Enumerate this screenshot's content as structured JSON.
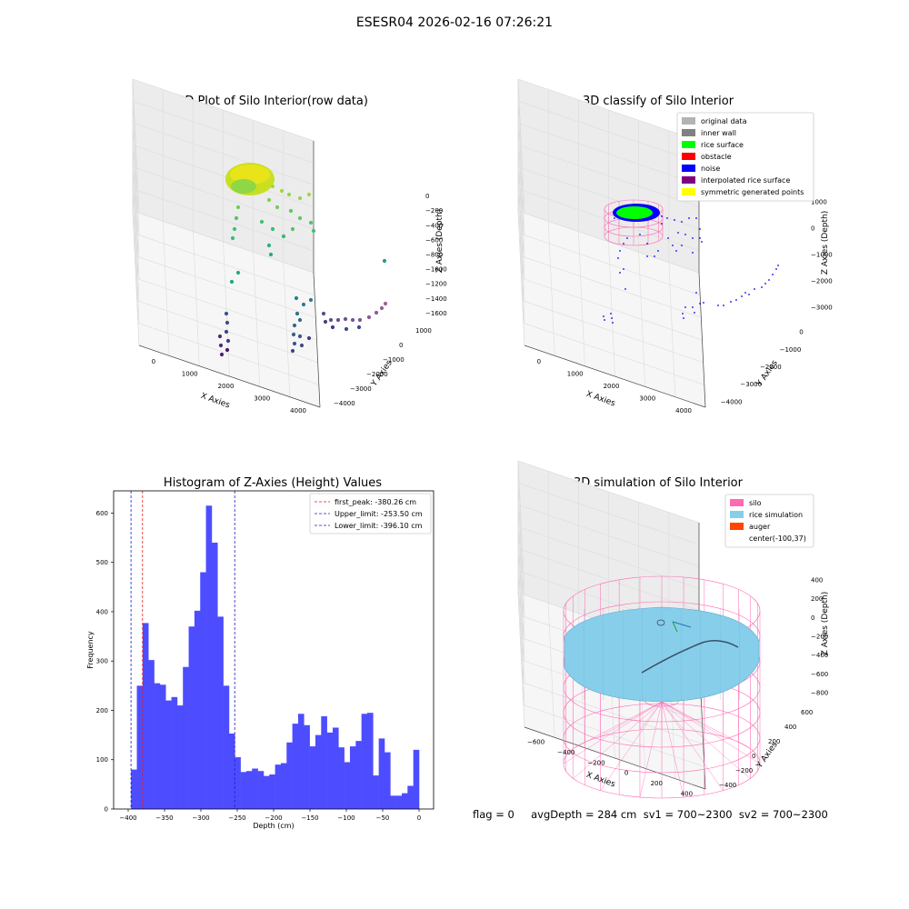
{
  "suptitle": "ESESR04 2026-02-16 07:26:21",
  "footer": "flag = 0     avgDepth = 284 cm  sv1 = 700~2300  sv2 = 700~2300",
  "colors": {
    "hist_bar": "#4d4dff",
    "peak_line": "#e41a1c",
    "limit_line": "#1f1fbf",
    "silo": "#ff69b4",
    "rice": "#87ceeb",
    "noise": "#0000ff",
    "rice_surface": "#00ff00"
  },
  "chart_data": [
    {
      "type": "scatter",
      "title": "3D Plot of Silo Interior(row data)",
      "xlabel": "X Axies",
      "ylabel": "Y Axies",
      "zlabel": "Z Axies (Depth)",
      "x_ticks": [
        "0",
        "1000",
        "2000",
        "3000",
        "4000"
      ],
      "y_ticks": [
        "1000",
        "0",
        "−1000",
        "−2000",
        "−3000",
        "−4000"
      ],
      "z_ticks": [
        "0",
        "−200",
        "−400",
        "−600",
        "−800",
        "−1000",
        "−1200",
        "−1400",
        "−1600"
      ],
      "colormap": "viridis"
    },
    {
      "type": "scatter",
      "title": "3D classify of Silo Interior",
      "xlabel": "X Axies",
      "ylabel": "Y Axies",
      "zlabel": "Z Axies (Depth)",
      "x_ticks": [
        "0",
        "1000",
        "2000",
        "3000",
        "4000"
      ],
      "y_ticks": [
        "0",
        "−1000",
        "−2000",
        "−3000",
        "−4000"
      ],
      "z_ticks": [
        "1000",
        "0",
        "−1000",
        "−2000",
        "−3000"
      ],
      "legend": [
        {
          "label": "original data",
          "color": "#b3b3b3"
        },
        {
          "label": "inner wall",
          "color": "#808080"
        },
        {
          "label": "rice surface",
          "color": "#00ff00"
        },
        {
          "label": "obstacle",
          "color": "#ff0000"
        },
        {
          "label": "noise",
          "color": "#0000ff"
        },
        {
          "label": "interpolated rice surface",
          "color": "#800080"
        },
        {
          "label": "symmetric generated points",
          "color": "#ffff00"
        }
      ],
      "legend_position": "top-right"
    },
    {
      "type": "bar",
      "title": "Histogram of Z-Axies (Height) Values",
      "xlabel": "Depth (cm)",
      "ylabel": "Frequency",
      "xlim": [
        -420,
        20
      ],
      "ylim": [
        0,
        645
      ],
      "x_ticks": [
        -400,
        -350,
        -300,
        -250,
        -200,
        -150,
        -100,
        -50,
        0
      ],
      "x_tick_labels": [
        "−400",
        "−350",
        "−300",
        "−250",
        "−200",
        "−150",
        "−100",
        "−50",
        "0"
      ],
      "y_ticks": [
        0,
        100,
        200,
        300,
        400,
        500,
        600
      ],
      "bin_start": -396,
      "bin_width": 7.92,
      "values": [
        80,
        250,
        377,
        302,
        255,
        252,
        220,
        227,
        210,
        288,
        370,
        402,
        480,
        615,
        540,
        390,
        250,
        153,
        105,
        75,
        77,
        82,
        77,
        67,
        70,
        90,
        93,
        135,
        173,
        193,
        170,
        127,
        150,
        188,
        155,
        165,
        125,
        95,
        127,
        138,
        193,
        195,
        68,
        143,
        115,
        27,
        27,
        32,
        47,
        120
      ],
      "vlines": [
        {
          "label": "first_peak: -380.26 cm",
          "x": -380.26,
          "color": "#e41a1c"
        },
        {
          "label": "Upper_limit: -253.50 cm",
          "x": -253.5,
          "color": "#1f1fbf"
        },
        {
          "label": "Lower_limit: -396.10 cm",
          "x": -396.1,
          "color": "#1f1fbf"
        }
      ],
      "legend_position": "top-right"
    },
    {
      "type": "scatter",
      "title": "3D simulation of Silo Interior",
      "xlabel": "X Axies",
      "ylabel": "Y Axies",
      "zlabel": "Z Axies (Depth)",
      "x_ticks": [
        "−600",
        "−400",
        "−200",
        "0",
        "200",
        "400"
      ],
      "y_ticks": [
        "600",
        "400",
        "200",
        "0",
        "−200",
        "−400"
      ],
      "z_ticks": [
        "400",
        "200",
        "0",
        "−200",
        "−400",
        "−600",
        "−800"
      ],
      "legend": [
        {
          "label": "silo",
          "color": "#ff69b4"
        },
        {
          "label": "rice simulation",
          "color": "#87ceeb"
        },
        {
          "label": "auger",
          "color": "#ff4500"
        },
        {
          "label": "center(-100,37)",
          "color": ""
        }
      ],
      "legend_position": "top-right"
    }
  ]
}
